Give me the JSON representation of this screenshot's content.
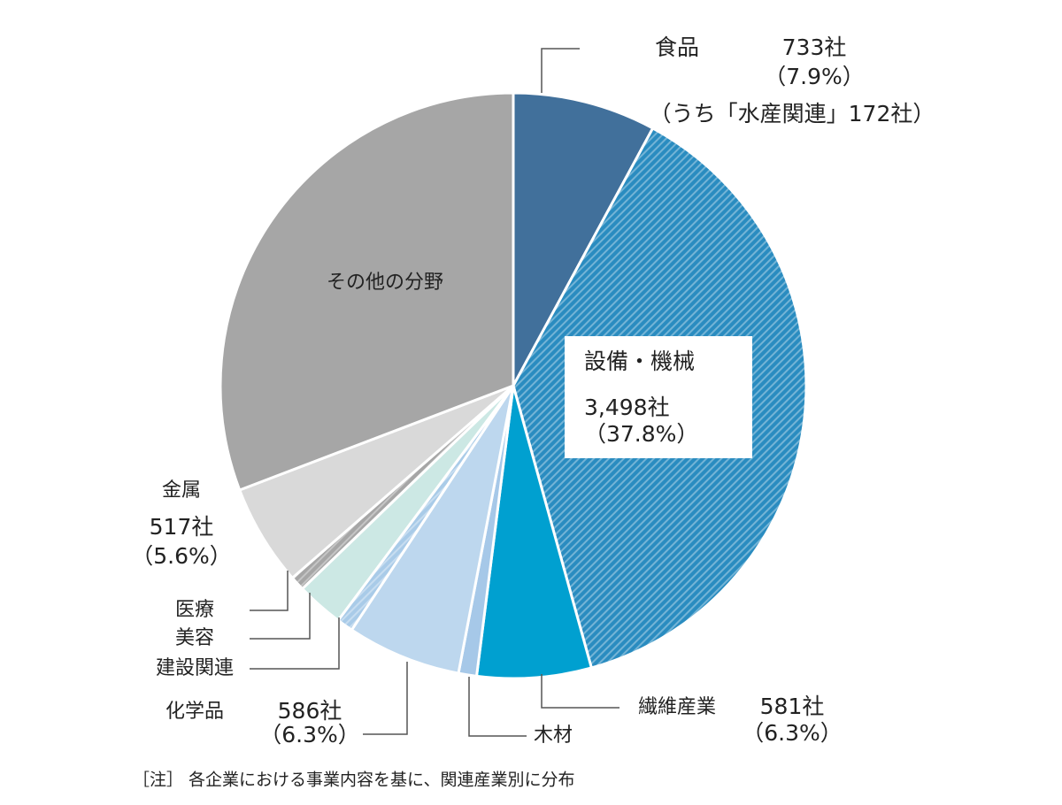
{
  "chart_data": {
    "type": "pie",
    "categories": [
      "食品",
      "設備・機械",
      "繊維産業",
      "木材",
      "化学品",
      "建設関連",
      "美容",
      "医療",
      "金属",
      "その他の分野"
    ],
    "values": [
      7.9,
      37.8,
      6.3,
      1.0,
      6.3,
      0.9,
      2.6,
      0.8,
      5.6,
      30.8
    ],
    "value_labels": [
      "（7.9%）",
      "（37.8%）",
      "（6.3%）",
      null,
      "（6.3%）",
      null,
      null,
      null,
      "（5.6%）",
      null
    ],
    "count_labels": [
      "733社",
      "3,498社",
      "581社",
      null,
      "586社",
      null,
      null,
      null,
      "517社",
      null
    ],
    "colors": [
      "#41709b",
      "#2a8cc0",
      "#00a0d0",
      "#a6c8e8",
      "#bdd7ee",
      "#a9cbe8",
      "#cce8e4",
      "#a6a6a6",
      "#d9d9d9",
      "#a6a6a6"
    ],
    "hatched": [
      false,
      true,
      false,
      false,
      false,
      true,
      false,
      true,
      false,
      false
    ],
    "annotations": [
      "（うち「水産関連」172社）"
    ],
    "note": "［注］ 各企業における事業内容を基に、関連産業別に分布"
  }
}
